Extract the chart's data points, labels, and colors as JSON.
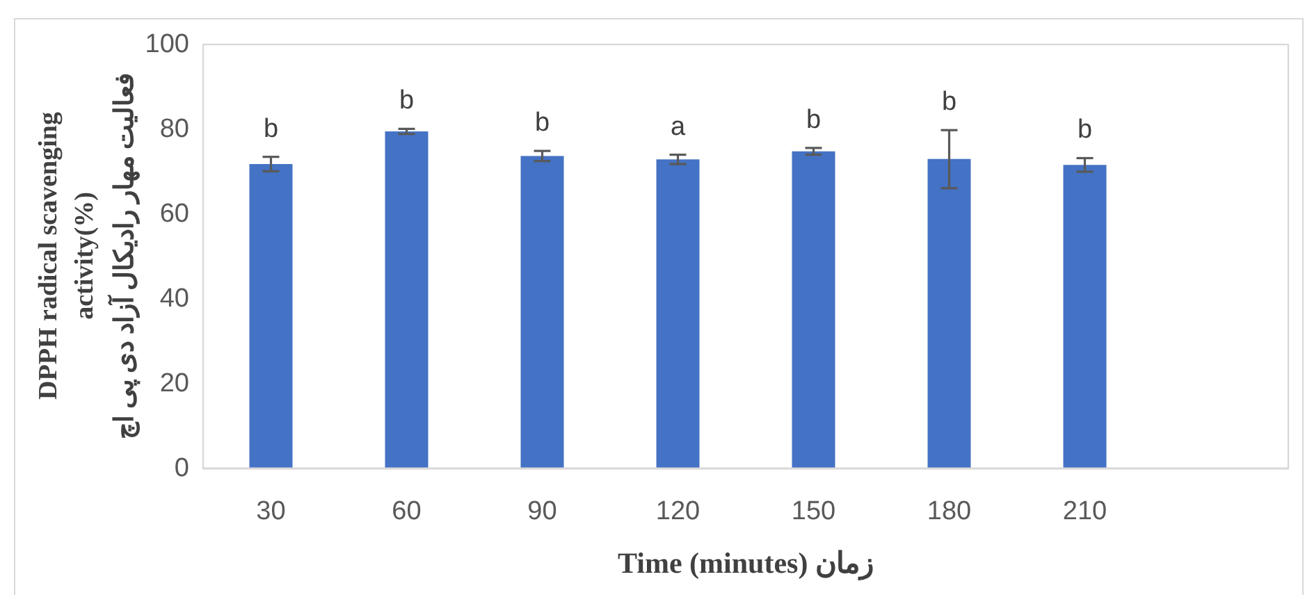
{
  "chart_data": {
    "type": "bar",
    "xlabel": "Time (minutes) زمان",
    "ylabel": "DPPH radical scavenging\nactivity(%)\nفعالیت مهار رادیکال آزاد دی پی اچ",
    "categories": [
      "30",
      "60",
      "90",
      "120",
      "150",
      "180",
      "210",
      null
    ],
    "values": [
      71.8,
      79.5,
      73.7,
      72.9,
      74.8,
      73.0,
      71.6,
      null
    ],
    "errors": [
      1.7,
      0.6,
      1.2,
      1.1,
      0.8,
      [
        66.1,
        79.8
      ],
      1.6,
      null
    ],
    "color": "#4472c4",
    "ylim": [
      0,
      100
    ],
    "yticks": [
      0,
      20,
      40,
      60,
      80,
      100
    ],
    "grid": false,
    "value_labels": [
      "b",
      "b",
      "b",
      "a",
      "b",
      "b",
      "b",
      null
    ]
  }
}
